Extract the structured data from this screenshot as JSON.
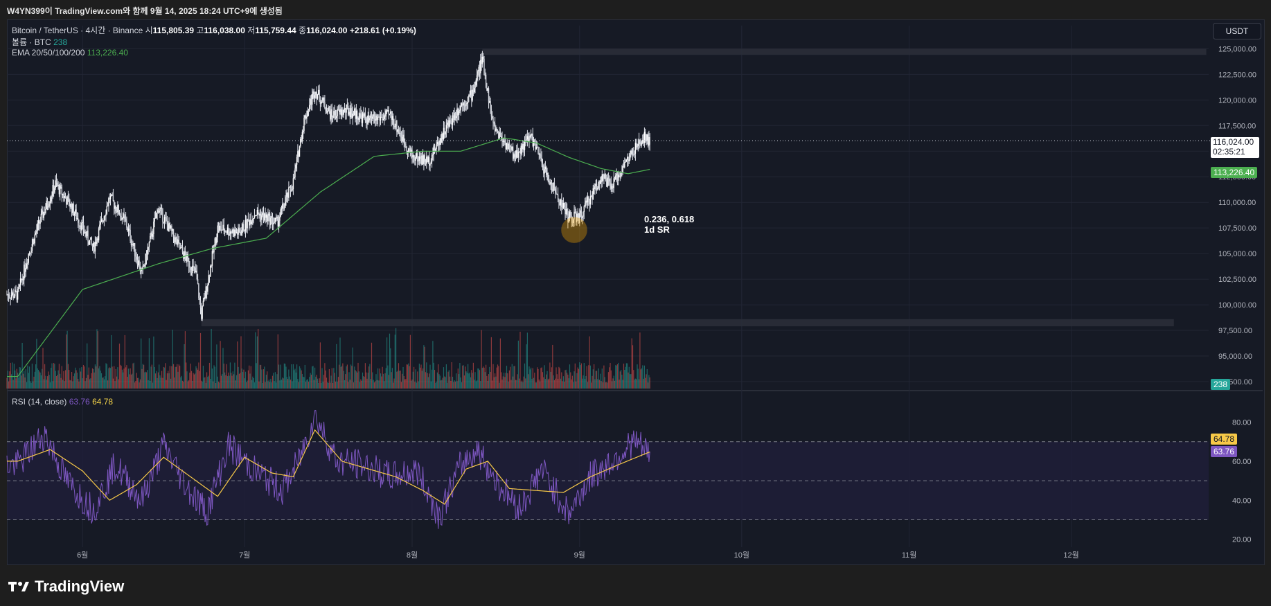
{
  "header": {
    "title": "W4YN399이 TradingView.com와 함께 9월 14, 2025 18:24 UTC+9에 생성됨"
  },
  "legend": {
    "symbol": "Bitcoin / TetherUS · 4시간 · Binance",
    "open_label": "시",
    "open": "115,805.39",
    "high_label": "고",
    "high": "116,038.00",
    "low_label": "저",
    "low": "115,759.44",
    "close_label": "종",
    "close": "116,024.00",
    "change": "+218.61 (+0.19%)",
    "volume_label": "볼륨 · BTC",
    "volume_value": "238",
    "ema_label": "EMA 20/50/100/200",
    "ema_value": "113,226.40"
  },
  "rsi_legend": {
    "label": "RSI (14, close)",
    "value1": "63.76",
    "value2": "64.78"
  },
  "currency": "USDT",
  "price_tags": {
    "last": "116,024.00",
    "countdown": "02:35:21",
    "ema": "113,226.40",
    "volume": "238",
    "rsi_ma": "64.78",
    "rsi": "63.76"
  },
  "annotation": {
    "line1": "0.236, 0.618",
    "line2": "1d SR"
  },
  "footer": {
    "brand": "TradingView"
  },
  "colors": {
    "background": "#161a25",
    "up": "#26a69a",
    "down": "#ef5350",
    "ema": "#4caf50",
    "rsi": "#7e57c2",
    "rsi_ma": "#f7c948",
    "zone": "#2a2e39",
    "highlight": "#f7a600"
  },
  "chart_data": [
    {
      "type": "candlestick",
      "title": "Bitcoin / TetherUS · 4시간 · Binance",
      "y_ticks": [
        "125,000.00",
        "122,500.00",
        "120,000.00",
        "117,500.00",
        "115,000.00",
        "112,500.00",
        "110,000.00",
        "107,500.00",
        "105,000.00",
        "102,500.00",
        "100,000.00",
        "97,500.00",
        "95,000.00",
        "92,500.00"
      ],
      "ylim": [
        92500,
        125500
      ],
      "x_ticks": [
        "6월",
        "7월",
        "8월",
        "9월",
        "10월",
        "11월",
        "12월"
      ],
      "price_path": {
        "dates": [
          "05-20",
          "05-22",
          "05-24",
          "05-27",
          "05-30",
          "06-03",
          "06-06",
          "06-09",
          "06-12",
          "06-15",
          "06-19",
          "06-22",
          "06-23",
          "06-26",
          "06-30",
          "07-03",
          "07-07",
          "07-10",
          "07-12",
          "07-14",
          "07-17",
          "07-20",
          "07-24",
          "07-28",
          "08-01",
          "08-04",
          "08-07",
          "08-10",
          "08-12",
          "08-14",
          "08-16",
          "08-20",
          "08-23",
          "08-26",
          "08-30",
          "09-01",
          "09-03",
          "09-05",
          "09-07",
          "09-09",
          "09-11",
          "09-13",
          "09-14"
        ],
        "close": [
          101000,
          105000,
          108000,
          111800,
          109500,
          105500,
          110500,
          108000,
          103000,
          109500,
          105500,
          103000,
          99000,
          107500,
          107000,
          109000,
          108000,
          112000,
          118000,
          121000,
          118500,
          119000,
          118000,
          118500,
          114500,
          114000,
          117000,
          119500,
          120500,
          124000,
          117500,
          114500,
          116500,
          112500,
          108500,
          108500,
          110500,
          112500,
          111500,
          113500,
          115000,
          116300,
          116024
        ]
      },
      "ema_path": {
        "dates": [
          "05-20",
          "06-01",
          "06-15",
          "06-25",
          "07-05",
          "07-15",
          "07-25",
          "08-03",
          "08-10",
          "08-18",
          "08-24",
          "08-30",
          "09-05",
          "09-10",
          "09-14"
        ],
        "values": [
          93000,
          101500,
          104000,
          105500,
          106500,
          111000,
          114500,
          115000,
          115000,
          116300,
          115800,
          114400,
          113300,
          112800,
          113226
        ]
      },
      "horizontal_zones": [
        {
          "y": [
            124400,
            125000
          ],
          "from": "08-14",
          "to": "12-26"
        },
        {
          "y": [
            97900,
            98600
          ],
          "from": "06-23",
          "to": "12-20"
        }
      ],
      "highlight": {
        "date": "08-31",
        "price": 107300
      },
      "last_price": 116024,
      "ema_last": 113226.4,
      "volume_last": 238
    },
    {
      "type": "line",
      "title": "RSI (14, close)",
      "y_ticks": [
        "80.00",
        "60.00",
        "40.00",
        "20.00"
      ],
      "ylim": [
        16,
        88
      ],
      "levels": [
        70,
        50,
        30
      ],
      "rsi_path": {
        "dates": [
          "05-20",
          "05-25",
          "05-29",
          "06-03",
          "06-07",
          "06-12",
          "06-16",
          "06-20",
          "06-24",
          "06-28",
          "07-03",
          "07-08",
          "07-11",
          "07-14",
          "07-18",
          "07-23",
          "07-28",
          "08-02",
          "08-06",
          "08-10",
          "08-13",
          "08-17",
          "08-21",
          "08-25",
          "08-30",
          "09-03",
          "09-07",
          "09-11",
          "09-14"
        ],
        "values": [
          58,
          74,
          50,
          35,
          58,
          40,
          68,
          48,
          34,
          68,
          55,
          45,
          60,
          84,
          60,
          58,
          52,
          55,
          32,
          58,
          66,
          48,
          36,
          56,
          33,
          52,
          60,
          70,
          63.76
        ]
      },
      "rsi_ma_path": {
        "dates": [
          "05-20",
          "05-26",
          "06-01",
          "06-06",
          "06-11",
          "06-16",
          "06-21",
          "06-26",
          "07-01",
          "07-06",
          "07-10",
          "07-14",
          "07-19",
          "07-24",
          "07-29",
          "08-03",
          "08-07",
          "08-11",
          "08-15",
          "08-19",
          "08-24",
          "08-29",
          "09-03",
          "09-08",
          "09-14"
        ],
        "values": [
          60,
          66,
          55,
          40,
          48,
          62,
          52,
          42,
          62,
          54,
          52,
          76,
          60,
          56,
          52,
          45,
          38,
          56,
          60,
          46,
          45,
          44,
          52,
          58,
          64.78
        ]
      },
      "last_rsi": 63.76,
      "last_rsi_ma": 64.78
    }
  ]
}
